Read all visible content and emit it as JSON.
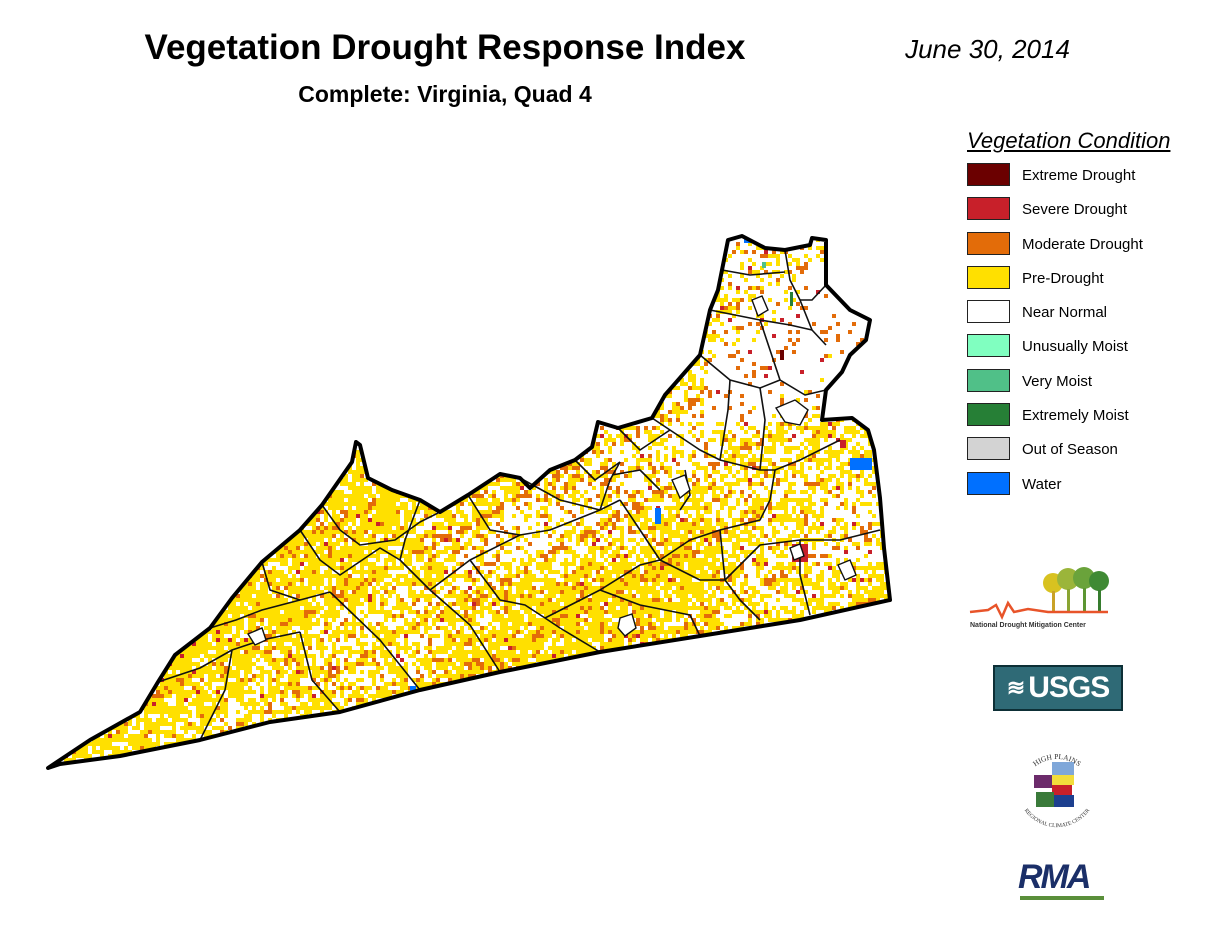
{
  "header": {
    "title": "Vegetation Drought Response Index",
    "subtitle": "Complete: Virginia, Quad 4",
    "date": "June 30, 2014"
  },
  "legend": {
    "title": "Vegetation Condition",
    "items": [
      {
        "label": "Extreme Drought",
        "color": "#6b0000"
      },
      {
        "label": "Severe Drought",
        "color": "#c8202a"
      },
      {
        "label": "Moderate Drought",
        "color": "#e36c09"
      },
      {
        "label": "Pre-Drought",
        "color": "#ffe000"
      },
      {
        "label": "Near Normal",
        "color": "#ffffff"
      },
      {
        "label": "Unusually Moist",
        "color": "#80ffc0"
      },
      {
        "label": "Very Moist",
        "color": "#50c088"
      },
      {
        "label": "Extremely Moist",
        "color": "#267f36"
      },
      {
        "label": "Out of Season",
        "color": "#d3d3d3"
      },
      {
        "label": "Water",
        "color": "#0070ff"
      }
    ]
  },
  "logos": {
    "ndmc": {
      "name": "National Drought Mitigation Center"
    },
    "usgs": {
      "text": "USGS"
    },
    "hprcc": {
      "top_text": "HIGH PLAINS",
      "bottom_text": "REGIONAL CLIMATE CENTER"
    },
    "rma": {
      "text": "RMA"
    }
  }
}
